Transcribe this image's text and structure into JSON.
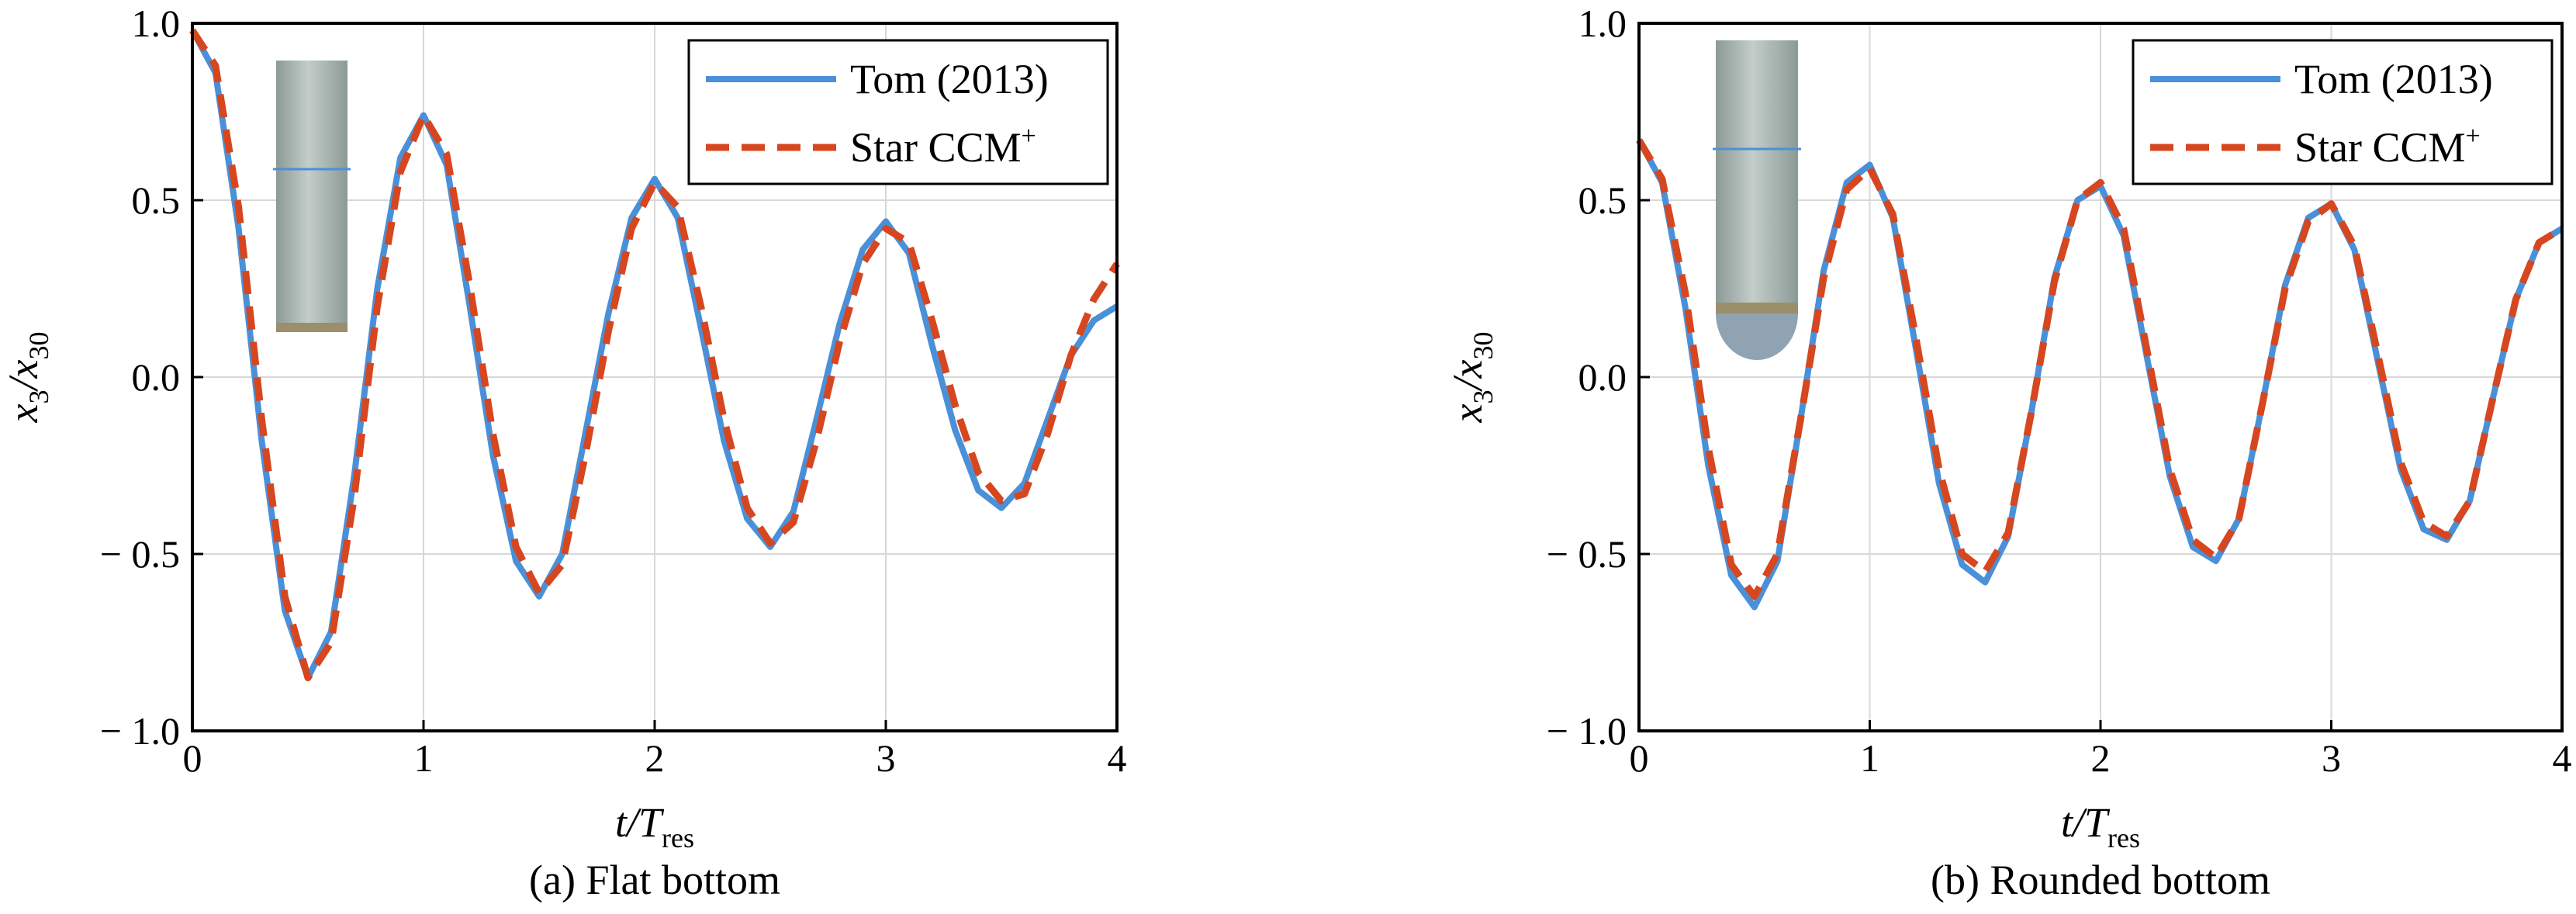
{
  "chart_data": [
    {
      "type": "line",
      "panel": "a",
      "caption": "(a) Flat bottom",
      "xlabel": "t/T",
      "xlabel_sub": "res",
      "ylabel": "x",
      "ylabel_sub": "3",
      "ylabel_den": "x",
      "ylabel_den_sub": "30",
      "xlim": [
        0,
        4
      ],
      "ylim": [
        -1.0,
        1.0
      ],
      "xticks": [
        0,
        1,
        2,
        3,
        4
      ],
      "xtick_labels": [
        "0",
        "1",
        "2",
        "3",
        "4"
      ],
      "yticks": [
        1.0,
        0.5,
        0.0,
        -0.5,
        -1.0
      ],
      "ytick_labels": [
        "1.0",
        "0.5",
        "0.0",
        "− 0.5",
        "− 1.0"
      ],
      "grid": true,
      "legend_position": "top-right",
      "inset": "flat-bottom cylinder",
      "series": [
        {
          "name": "Tom (2013)",
          "color": "#4a90d9",
          "style": "solid",
          "x": [
            0,
            0.1,
            0.2,
            0.3,
            0.4,
            0.5,
            0.6,
            0.7,
            0.8,
            0.9,
            1.0,
            1.1,
            1.2,
            1.3,
            1.4,
            1.5,
            1.6,
            1.7,
            1.8,
            1.9,
            2.0,
            2.1,
            2.2,
            2.3,
            2.4,
            2.5,
            2.6,
            2.7,
            2.8,
            2.9,
            3.0,
            3.1,
            3.2,
            3.3,
            3.4,
            3.5,
            3.6,
            3.7,
            3.8,
            3.9,
            4.0
          ],
          "y": [
            0.98,
            0.86,
            0.42,
            -0.18,
            -0.66,
            -0.85,
            -0.72,
            -0.28,
            0.25,
            0.62,
            0.74,
            0.6,
            0.2,
            -0.22,
            -0.52,
            -0.62,
            -0.5,
            -0.16,
            0.18,
            0.45,
            0.56,
            0.45,
            0.14,
            -0.18,
            -0.4,
            -0.48,
            -0.38,
            -0.12,
            0.15,
            0.36,
            0.44,
            0.35,
            0.09,
            -0.15,
            -0.32,
            -0.37,
            -0.3,
            -0.12,
            0.06,
            0.16,
            0.2
          ]
        },
        {
          "name": "Star CCM",
          "name_sup": "+",
          "color": "#d6461f",
          "style": "dashed",
          "x": [
            0,
            0.1,
            0.2,
            0.3,
            0.4,
            0.5,
            0.6,
            0.7,
            0.8,
            0.9,
            1.0,
            1.1,
            1.2,
            1.3,
            1.4,
            1.5,
            1.6,
            1.7,
            1.8,
            1.9,
            2.0,
            2.1,
            2.2,
            2.3,
            2.4,
            2.5,
            2.6,
            2.7,
            2.8,
            2.9,
            3.0,
            3.1,
            3.2,
            3.3,
            3.4,
            3.5,
            3.6,
            3.7,
            3.8,
            3.9,
            4.0
          ],
          "y": [
            0.98,
            0.88,
            0.48,
            -0.12,
            -0.62,
            -0.85,
            -0.75,
            -0.34,
            0.2,
            0.58,
            0.74,
            0.63,
            0.26,
            -0.16,
            -0.48,
            -0.61,
            -0.53,
            -0.22,
            0.13,
            0.42,
            0.55,
            0.48,
            0.2,
            -0.12,
            -0.37,
            -0.47,
            -0.41,
            -0.18,
            0.1,
            0.32,
            0.42,
            0.38,
            0.16,
            -0.08,
            -0.27,
            -0.35,
            -0.33,
            -0.16,
            0.06,
            0.22,
            0.32
          ]
        }
      ]
    },
    {
      "type": "line",
      "panel": "b",
      "caption": "(b) Rounded bottom",
      "xlabel": "t/T",
      "xlabel_sub": "res",
      "ylabel": "x",
      "ylabel_sub": "3",
      "ylabel_den": "x",
      "ylabel_den_sub": "30",
      "xlim": [
        0,
        4
      ],
      "ylim": [
        -1.0,
        1.0
      ],
      "xticks": [
        0,
        1,
        2,
        3,
        4
      ],
      "xtick_labels": [
        "0",
        "1",
        "2",
        "3",
        "4"
      ],
      "yticks": [
        1.0,
        0.5,
        0.0,
        -0.5,
        -1.0
      ],
      "ytick_labels": [
        "1.0",
        "0.5",
        "0.0",
        "− 0.5",
        "− 1.0"
      ],
      "grid": true,
      "legend_position": "top-right",
      "inset": "rounded-bottom cylinder",
      "series": [
        {
          "name": "Tom (2013)",
          "color": "#4a90d9",
          "style": "solid",
          "x": [
            0,
            0.1,
            0.2,
            0.3,
            0.4,
            0.5,
            0.6,
            0.7,
            0.8,
            0.9,
            1.0,
            1.1,
            1.2,
            1.3,
            1.4,
            1.5,
            1.6,
            1.7,
            1.8,
            1.9,
            2.0,
            2.1,
            2.2,
            2.3,
            2.4,
            2.5,
            2.6,
            2.7,
            2.8,
            2.9,
            3.0,
            3.1,
            3.2,
            3.3,
            3.4,
            3.5,
            3.6,
            3.7,
            3.8,
            3.9,
            4.0
          ],
          "y": [
            0.67,
            0.55,
            0.2,
            -0.25,
            -0.56,
            -0.65,
            -0.52,
            -0.12,
            0.3,
            0.55,
            0.6,
            0.45,
            0.08,
            -0.3,
            -0.53,
            -0.58,
            -0.45,
            -0.1,
            0.28,
            0.5,
            0.54,
            0.4,
            0.06,
            -0.28,
            -0.48,
            -0.52,
            -0.4,
            -0.08,
            0.26,
            0.45,
            0.49,
            0.36,
            0.05,
            -0.26,
            -0.43,
            -0.46,
            -0.35,
            -0.06,
            0.22,
            0.38,
            0.42
          ]
        },
        {
          "name": "Star CCM",
          "name_sup": "+",
          "color": "#d6461f",
          "style": "dashed",
          "x": [
            0,
            0.1,
            0.2,
            0.3,
            0.4,
            0.5,
            0.6,
            0.7,
            0.8,
            0.9,
            1.0,
            1.1,
            1.2,
            1.3,
            1.4,
            1.5,
            1.6,
            1.7,
            1.8,
            1.9,
            2.0,
            2.1,
            2.2,
            2.3,
            2.4,
            2.5,
            2.6,
            2.7,
            2.8,
            2.9,
            3.0,
            3.1,
            3.2,
            3.3,
            3.4,
            3.5,
            3.6,
            3.7,
            3.8,
            3.9,
            4.0
          ],
          "y": [
            0.67,
            0.56,
            0.24,
            -0.2,
            -0.53,
            -0.62,
            -0.5,
            -0.12,
            0.28,
            0.53,
            0.59,
            0.46,
            0.11,
            -0.26,
            -0.5,
            -0.55,
            -0.44,
            -0.1,
            0.27,
            0.5,
            0.55,
            0.42,
            0.08,
            -0.26,
            -0.46,
            -0.51,
            -0.4,
            -0.08,
            0.25,
            0.44,
            0.49,
            0.37,
            0.07,
            -0.24,
            -0.41,
            -0.45,
            -0.35,
            -0.06,
            0.22,
            0.38,
            0.42
          ]
        }
      ]
    }
  ],
  "colors": {
    "blue": "#4a90d9",
    "red": "#d6461f",
    "grid": "#d8d8d8",
    "cyl_dark": "#8c9a96",
    "cyl_light": "#c3cdca"
  }
}
